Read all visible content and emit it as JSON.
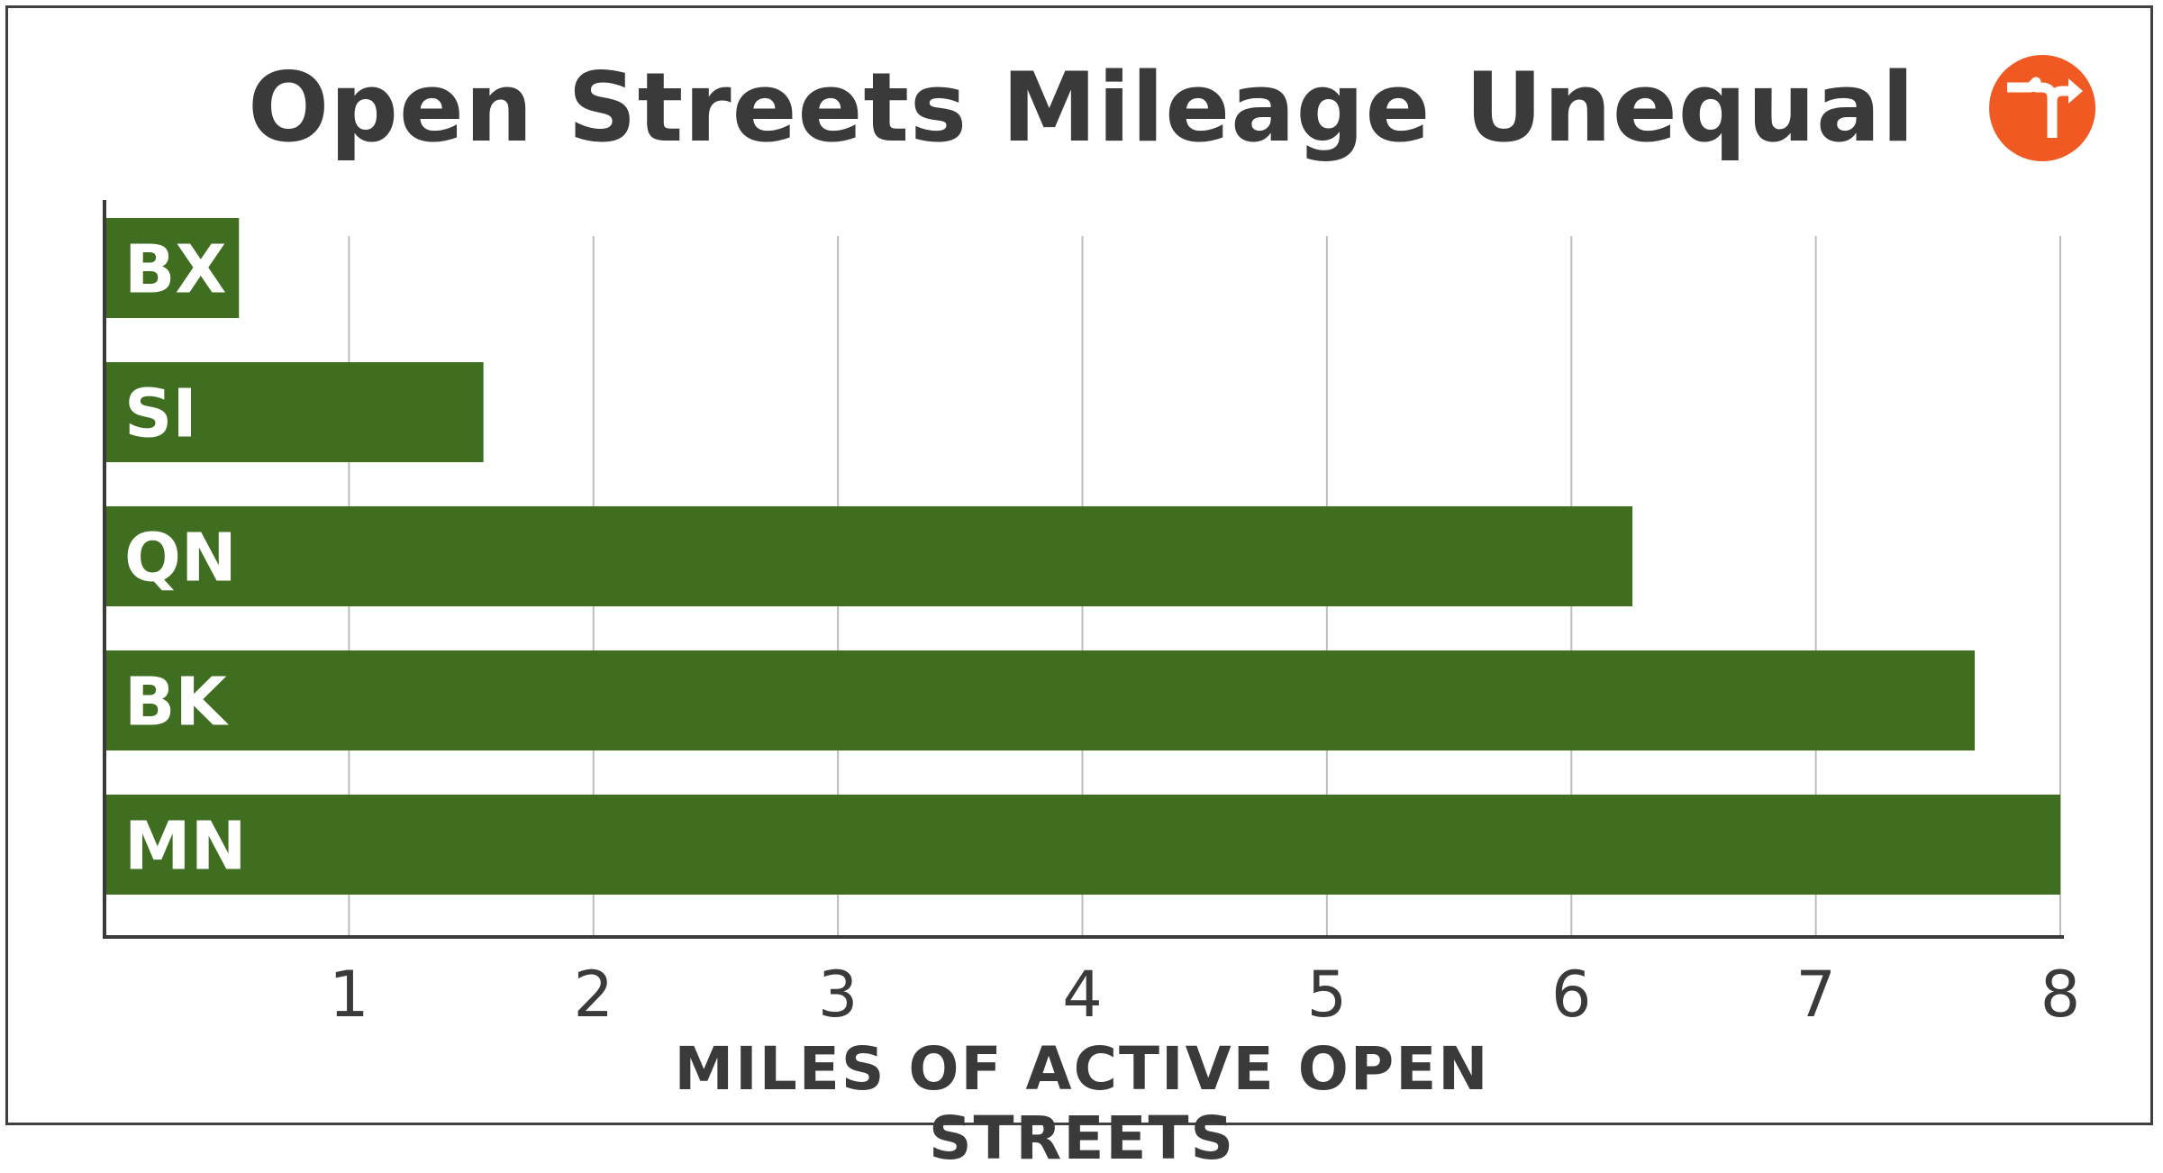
{
  "chart_data": {
    "type": "bar",
    "orientation": "horizontal",
    "title": "Open Streets Mileage Unequal",
    "xlabel": "MILES OF ACTIVE OPEN STREETS",
    "ylabel": "",
    "categories": [
      "BX",
      "SI",
      "QN",
      "BK",
      "MN"
    ],
    "values": [
      0.55,
      1.55,
      6.25,
      7.65,
      8.0
    ],
    "xlim": [
      0,
      8
    ],
    "x_ticks": [
      "1",
      "2",
      "3",
      "4",
      "5",
      "6",
      "7",
      "8"
    ],
    "grid": "vertical",
    "legend": "none",
    "bar_color": "#3f6e21",
    "grid_color": "#bdbdbd",
    "axis_color": "#3a3a3a",
    "label_color": "#ffffff"
  },
  "logo": {
    "icon": "turn-arrow-icon",
    "color": "#f05a22"
  }
}
